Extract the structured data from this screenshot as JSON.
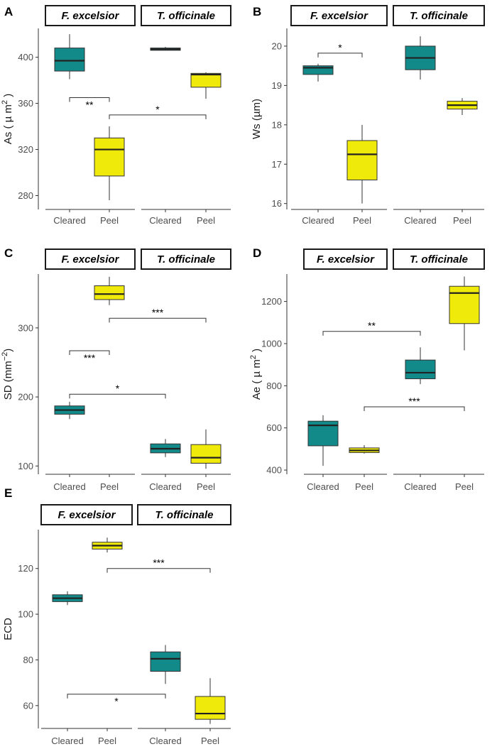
{
  "chart_data": [
    {
      "type": "box",
      "panel": "A",
      "facets": [
        "F. excelsior",
        "T. officinale"
      ],
      "categories": [
        "Cleared",
        "Peel"
      ],
      "ylabel": "As ( µ m",
      "ylabel_sup": "2",
      "ylabel_end": " )",
      "ylim": [
        268,
        425
      ],
      "yticks": [
        280,
        320,
        360,
        400
      ],
      "boxes": [
        {
          "facet": 0,
          "cat": 0,
          "min": 381,
          "q1": 388,
          "median": 397,
          "q3": 408,
          "max": 420,
          "color": "#138a8a"
        },
        {
          "facet": 0,
          "cat": 1,
          "min": 276,
          "q1": 297,
          "median": 320,
          "q3": 330,
          "max": 340,
          "color": "#f0ea0a"
        },
        {
          "facet": 1,
          "cat": 0,
          "min": 406,
          "q1": 406,
          "median": 407,
          "q3": 408,
          "max": 409,
          "color": "#138a8a"
        },
        {
          "facet": 1,
          "cat": 1,
          "min": 364,
          "q1": 374,
          "median": 385,
          "q3": 386,
          "max": 387,
          "color": "#f0ea0a"
        }
      ],
      "brackets": [
        {
          "from": [
            0,
            0
          ],
          "to": [
            0,
            1
          ],
          "y": 365,
          "label": "**",
          "label_below": true
        },
        {
          "from": [
            0,
            1
          ],
          "to": [
            1,
            1
          ],
          "y": 350,
          "label": "*",
          "label_below": false
        }
      ]
    },
    {
      "type": "box",
      "panel": "B",
      "facets": [
        "F. excelsior",
        "T. officinale"
      ],
      "categories": [
        "Cleared",
        "Peel"
      ],
      "ylabel": "Ws  (µm)",
      "ylim": [
        15.85,
        20.45
      ],
      "yticks": [
        16,
        17,
        18,
        19,
        20
      ],
      "boxes": [
        {
          "facet": 0,
          "cat": 0,
          "min": 19.1,
          "q1": 19.28,
          "median": 19.45,
          "q3": 19.5,
          "max": 19.55,
          "color": "#138a8a"
        },
        {
          "facet": 0,
          "cat": 1,
          "min": 16.0,
          "q1": 16.6,
          "median": 17.25,
          "q3": 17.6,
          "max": 18.0,
          "color": "#f0ea0a"
        },
        {
          "facet": 1,
          "cat": 0,
          "min": 19.15,
          "q1": 19.4,
          "median": 19.7,
          "q3": 20.0,
          "max": 20.25,
          "color": "#138a8a"
        },
        {
          "facet": 1,
          "cat": 1,
          "min": 18.25,
          "q1": 18.4,
          "median": 18.5,
          "q3": 18.6,
          "max": 18.68,
          "color": "#f0ea0a"
        }
      ],
      "brackets": [
        {
          "from": [
            0,
            0
          ],
          "to": [
            0,
            1
          ],
          "y": 19.82,
          "label": "*",
          "label_below": false
        }
      ]
    },
    {
      "type": "box",
      "panel": "C",
      "facets": [
        "F. excelsior",
        "T. officinale"
      ],
      "categories": [
        "Cleared",
        "Peel"
      ],
      "ylabel": "SD (mm",
      "ylabel_sup": "−2",
      "ylabel_end": ")",
      "ylim": [
        88,
        378
      ],
      "yticks": [
        100,
        200,
        300
      ],
      "boxes": [
        {
          "facet": 0,
          "cat": 0,
          "min": 168,
          "q1": 175,
          "median": 181,
          "q3": 187,
          "max": 193,
          "color": "#138a8a"
        },
        {
          "facet": 0,
          "cat": 1,
          "min": 333,
          "q1": 341,
          "median": 349,
          "q3": 361,
          "max": 374,
          "color": "#f0ea0a"
        },
        {
          "facet": 1,
          "cat": 0,
          "min": 113,
          "q1": 119,
          "median": 125,
          "q3": 132,
          "max": 139,
          "color": "#138a8a"
        },
        {
          "facet": 1,
          "cat": 1,
          "min": 96,
          "q1": 104,
          "median": 112,
          "q3": 131,
          "max": 153,
          "color": "#f0ea0a"
        }
      ],
      "brackets": [
        {
          "from": [
            0,
            0
          ],
          "to": [
            0,
            1
          ],
          "y": 267,
          "label": "***",
          "label_below": true
        },
        {
          "from": [
            0,
            0
          ],
          "to": [
            1,
            0
          ],
          "y": 204,
          "label": "*",
          "label_below": false
        },
        {
          "from": [
            0,
            1
          ],
          "to": [
            1,
            1
          ],
          "y": 314,
          "label": "***",
          "label_below": false
        }
      ]
    },
    {
      "type": "box",
      "panel": "D",
      "facets": [
        "F. excelsior",
        "T. officinale"
      ],
      "categories": [
        "Cleared",
        "Peel"
      ],
      "ylabel": "Ae ( µ m",
      "ylabel_sup": "2",
      "ylabel_end": " )",
      "ylim": [
        380,
        1330
      ],
      "yticks": [
        400,
        600,
        800,
        1000,
        1200
      ],
      "boxes": [
        {
          "facet": 0,
          "cat": 0,
          "min": 420,
          "q1": 515,
          "median": 612,
          "q3": 632,
          "max": 660,
          "color": "#138a8a"
        },
        {
          "facet": 0,
          "cat": 1,
          "min": 478,
          "q1": 483,
          "median": 493,
          "q3": 505,
          "max": 518,
          "color": "#f0ea0a"
        },
        {
          "facet": 1,
          "cat": 0,
          "min": 808,
          "q1": 833,
          "median": 862,
          "q3": 922,
          "max": 982,
          "color": "#138a8a"
        },
        {
          "facet": 1,
          "cat": 1,
          "min": 968,
          "q1": 1095,
          "median": 1240,
          "q3": 1272,
          "max": 1318,
          "color": "#f0ea0a"
        }
      ],
      "brackets": [
        {
          "from": [
            0,
            0
          ],
          "to": [
            1,
            0
          ],
          "y": 1058,
          "label": "**",
          "label_below": false
        },
        {
          "from": [
            0,
            1
          ],
          "to": [
            1,
            1
          ],
          "y": 700,
          "label": "***",
          "label_below": false
        }
      ]
    },
    {
      "type": "box",
      "panel": "E",
      "facets": [
        "F. excelsior",
        "T. officinale"
      ],
      "categories": [
        "Cleared",
        "Peel"
      ],
      "ylabel": "ECD",
      "ylim": [
        50,
        137
      ],
      "yticks": [
        60,
        80,
        100,
        120
      ],
      "boxes": [
        {
          "facet": 0,
          "cat": 0,
          "min": 104,
          "q1": 105.5,
          "median": 107,
          "q3": 108.5,
          "max": 110,
          "color": "#138a8a"
        },
        {
          "facet": 0,
          "cat": 1,
          "min": 127,
          "q1": 128.5,
          "median": 130,
          "q3": 131.5,
          "max": 133.5,
          "color": "#f0ea0a"
        },
        {
          "facet": 1,
          "cat": 0,
          "min": 69.5,
          "q1": 75,
          "median": 80.5,
          "q3": 83.5,
          "max": 86.5,
          "color": "#138a8a"
        },
        {
          "facet": 1,
          "cat": 1,
          "min": 52,
          "q1": 54,
          "median": 56.5,
          "q3": 64,
          "max": 72,
          "color": "#f0ea0a"
        }
      ],
      "brackets": [
        {
          "from": [
            0,
            0
          ],
          "to": [
            1,
            0
          ],
          "y": 65,
          "label": "*",
          "label_below": true
        },
        {
          "from": [
            0,
            1
          ],
          "to": [
            1,
            1
          ],
          "y": 120,
          "label": "***",
          "label_below": false
        }
      ]
    }
  ]
}
